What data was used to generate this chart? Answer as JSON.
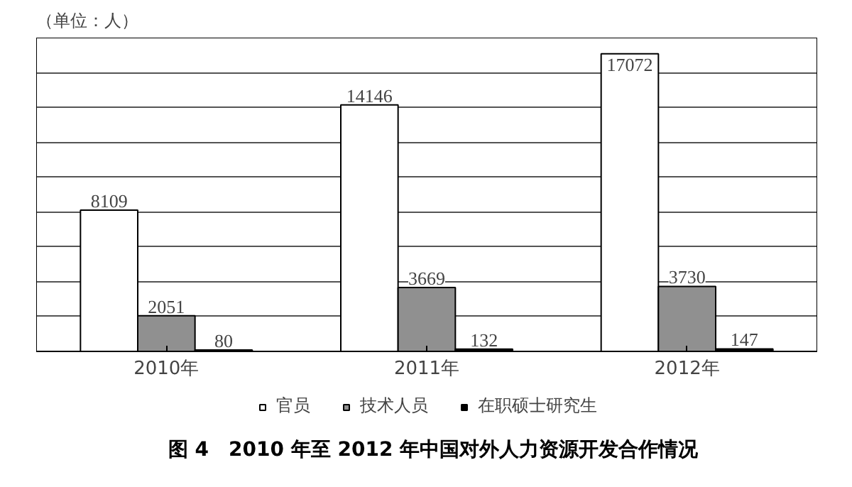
{
  "chart_data": {
    "type": "bar",
    "title": "图 4　2010 年至 2012 年中国对外人力资源开发合作情况",
    "annotations": [
      "（单位：人）"
    ],
    "categories": [
      "2010年",
      "2011年",
      "2012年"
    ],
    "series": [
      {
        "name": "官员",
        "color": "#ffffff",
        "values": [
          8109,
          14146,
          17072
        ]
      },
      {
        "name": "技术人员",
        "color": "#909090",
        "values": [
          2051,
          3669,
          3730
        ]
      },
      {
        "name": "在职硕士研究生",
        "color": "#000000",
        "values": [
          80,
          132,
          147
        ]
      }
    ],
    "ylim": [
      0,
      18000
    ],
    "yticks": [
      {
        "value": 0,
        "label": null
      },
      {
        "value": 2000,
        "label": null
      },
      {
        "value": 4000,
        "label": null
      },
      {
        "value": 6000,
        "label": null
      },
      {
        "value": 8000,
        "label": null
      },
      {
        "value": 10000,
        "label": null
      },
      {
        "value": 12000,
        "label": null
      },
      {
        "value": 14000,
        "label": null
      },
      {
        "value": 16000,
        "label": null
      },
      {
        "value": 18000,
        "label": null
      }
    ],
    "tick_labels": "x",
    "grid": "y",
    "legend": "bottom",
    "data_labels": true
  }
}
